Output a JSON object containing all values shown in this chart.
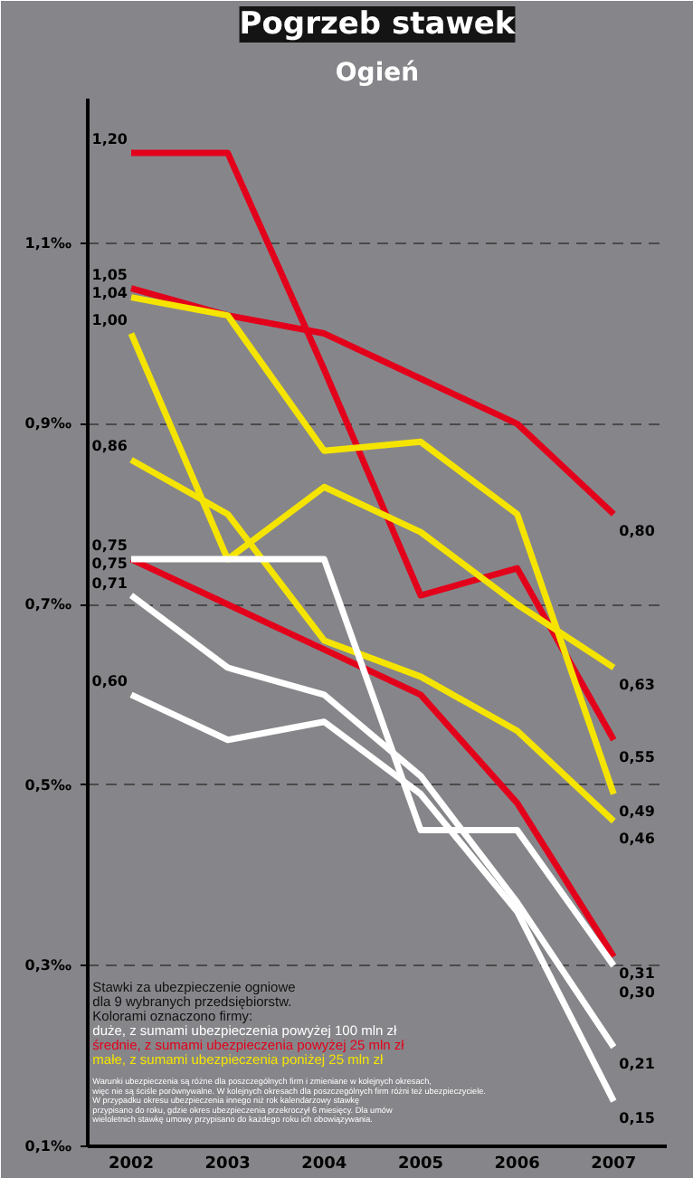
{
  "chart_data": {
    "type": "line",
    "title": "Pogrzeb stawek",
    "subtitle": "Ogień",
    "categories": [
      "2002",
      "2003",
      "2004",
      "2005",
      "2006",
      "2007"
    ],
    "ylim": [
      0.1,
      1.26
    ],
    "yticks": [
      {
        "value": 0.1,
        "label": "0,1‰"
      },
      {
        "value": 0.3,
        "label": "0,3‰"
      },
      {
        "value": 0.5,
        "label": "0,5‰"
      },
      {
        "value": 0.7,
        "label": "0,7‰"
      },
      {
        "value": 0.9,
        "label": "0,9‰"
      },
      {
        "value": 1.1,
        "label": "1,1‰"
      }
    ],
    "grid": "y",
    "line_style": "solid",
    "marker": "none",
    "series": [
      {
        "color": "#e3001b",
        "values": [
          1.2,
          1.2,
          0.96,
          0.71,
          0.74,
          0.55
        ],
        "value_labels": [
          "1,20",
          null,
          null,
          null,
          null,
          "0,55"
        ]
      },
      {
        "color": "#e3001b",
        "values": [
          1.05,
          1.02,
          1.0,
          0.95,
          0.9,
          0.8
        ],
        "value_labels": [
          "1,05",
          null,
          null,
          null,
          null,
          "0,80"
        ]
      },
      {
        "color": "#e3001b",
        "values": [
          0.75,
          0.7,
          0.65,
          0.6,
          0.48,
          0.31
        ],
        "value_labels": [
          "0,75",
          null,
          null,
          null,
          null,
          "0,31"
        ]
      },
      {
        "color": "#f5e400",
        "values": [
          1.04,
          1.02,
          0.87,
          0.88,
          0.8,
          0.49
        ],
        "value_labels": [
          "1,04",
          null,
          null,
          null,
          null,
          "0,49"
        ]
      },
      {
        "color": "#f5e400",
        "values": [
          1.0,
          0.75,
          0.83,
          0.78,
          0.7,
          0.63
        ],
        "value_labels": [
          "1,00",
          null,
          null,
          null,
          null,
          "0,63"
        ]
      },
      {
        "color": "#f5e400",
        "values": [
          0.86,
          0.8,
          0.66,
          0.62,
          0.56,
          0.46
        ],
        "value_labels": [
          "0,86",
          null,
          null,
          null,
          null,
          "0,46"
        ]
      },
      {
        "color": "#ffffff",
        "values": [
          0.75,
          0.75,
          0.75,
          0.45,
          0.45,
          0.3
        ],
        "value_labels": [
          "0,75",
          null,
          null,
          null,
          null,
          "0,30"
        ]
      },
      {
        "color": "#ffffff",
        "values": [
          0.71,
          0.63,
          0.6,
          0.51,
          0.37,
          0.21
        ],
        "value_labels": [
          "0,71",
          null,
          null,
          null,
          null,
          "0,21"
        ]
      },
      {
        "color": "#ffffff",
        "values": [
          0.6,
          0.55,
          0.57,
          0.49,
          0.36,
          0.15
        ],
        "value_labels": [
          "0,60",
          null,
          null,
          null,
          null,
          "0,15"
        ]
      }
    ],
    "annotations": [
      "Stawki za ubezpieczenie ogniowe",
      "dla 9 wybranych przedsiębiorstw.",
      "Kolorami oznaczono firmy:",
      "duże, z sumami ubezpieczenia powyżej 100 mln zł",
      "średnie, z sumami ubezpieczenia powyżej 25 mln zł",
      "małe, z sumami ubezpieczenia poniżej 25 mln zł",
      "Warunki ubezpieczenia są różne dla poszczególnych firm i zmieniane w kolejnych okresach,",
      "więc nie są ściśle porównywalne. W kolejnych okresach dla poszczególnych firm różni też ubezpieczyciele.",
      "W przypadku okresu ubezpieczenia innego niż rok kalendarzowy stawkę",
      "przypisano do roku, gdzie okres ubezpieczenia przekroczył 6 miesięcy. Dla umów",
      "wieloletnich stawkę umowy przypisano do każdego roku ich obowiązywania."
    ]
  }
}
